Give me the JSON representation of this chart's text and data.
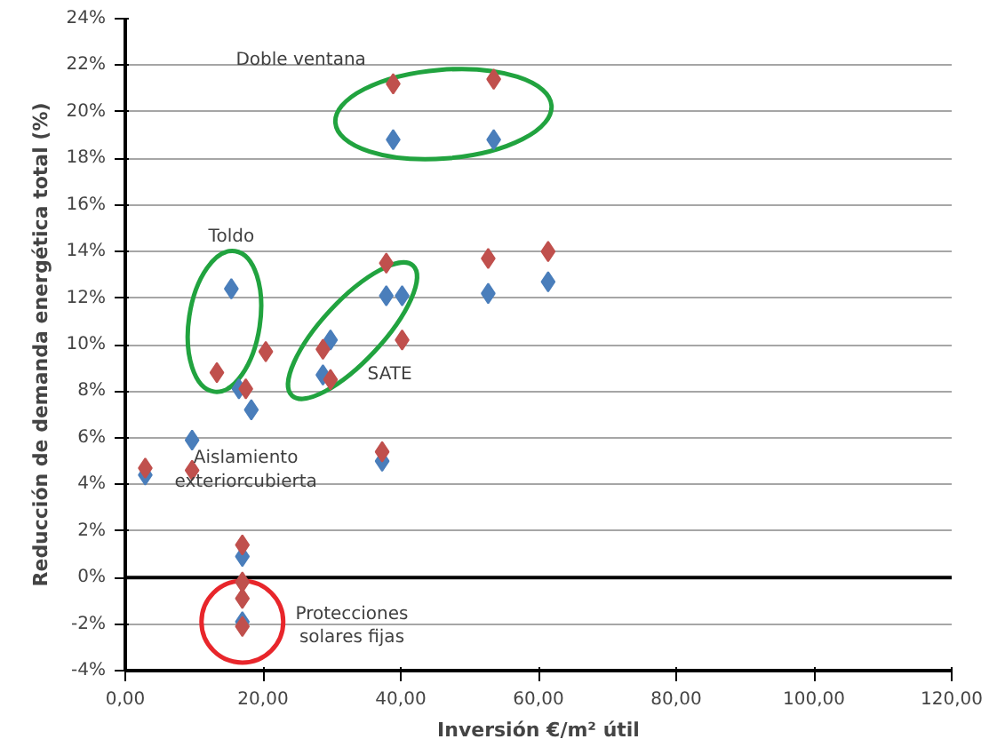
{
  "chart_data": {
    "type": "scatter",
    "xlabel": "Inversión €/m² útil",
    "ylabel": "Reducción de demanda energética total (%)",
    "xlim": [
      0,
      120
    ],
    "xticks": [
      {
        "value": 0,
        "label": "0,00"
      },
      {
        "value": 20,
        "label": "20,00"
      },
      {
        "value": 40,
        "label": "40,00"
      },
      {
        "value": 60,
        "label": "60,00"
      },
      {
        "value": 80,
        "label": "80,00"
      },
      {
        "value": 100,
        "label": "100,00"
      },
      {
        "value": 120,
        "label": "120,00"
      }
    ],
    "ylim": [
      -4,
      24
    ],
    "yticks": [
      {
        "value": -4,
        "label": "-4%"
      },
      {
        "value": -2,
        "label": "-2%"
      },
      {
        "value": 0,
        "label": "0%"
      },
      {
        "value": 2,
        "label": "2%"
      },
      {
        "value": 4,
        "label": "4%"
      },
      {
        "value": 6,
        "label": "6%"
      },
      {
        "value": 8,
        "label": "8%"
      },
      {
        "value": 10,
        "label": "10%"
      },
      {
        "value": 12,
        "label": "12%"
      },
      {
        "value": 14,
        "label": "14%"
      },
      {
        "value": 16,
        "label": "16%"
      },
      {
        "value": 18,
        "label": "18%"
      },
      {
        "value": 20,
        "label": "20%"
      },
      {
        "value": 22,
        "label": "22%"
      },
      {
        "value": 24,
        "label": "24%"
      }
    ],
    "grid": "y",
    "marker": "diamond",
    "series": [
      {
        "color": "#4a7ebb",
        "x": [
          38.9,
          53.5,
          15.4,
          37.9,
          40.2,
          52.7,
          61.4,
          29.8,
          28.7,
          16.5,
          18.3,
          9.7,
          37.3,
          2.9,
          17.0,
          17.0
        ],
        "values": [
          18.8,
          18.8,
          12.4,
          12.1,
          12.1,
          12.2,
          12.7,
          10.2,
          8.7,
          8.1,
          7.2,
          5.9,
          5.0,
          4.4,
          0.9,
          -1.9
        ]
      },
      {
        "color": "#c0504d",
        "x": [
          38.9,
          53.5,
          37.9,
          52.7,
          61.4,
          40.2,
          20.4,
          28.7,
          13.3,
          29.8,
          17.5,
          37.3,
          2.9,
          9.7,
          17.0,
          17.0,
          17.0,
          17.0
        ],
        "values": [
          21.2,
          21.4,
          13.5,
          13.7,
          14.0,
          10.2,
          9.7,
          9.8,
          8.8,
          8.5,
          8.1,
          5.4,
          4.7,
          4.6,
          1.4,
          -0.2,
          -0.9,
          -2.1
        ]
      }
    ],
    "annotations": [
      "Doble ventana",
      "Toldo",
      "SATE",
      "Aislamiento\nexteriorcubierta",
      "Protecciones\nsolares fijas"
    ]
  }
}
